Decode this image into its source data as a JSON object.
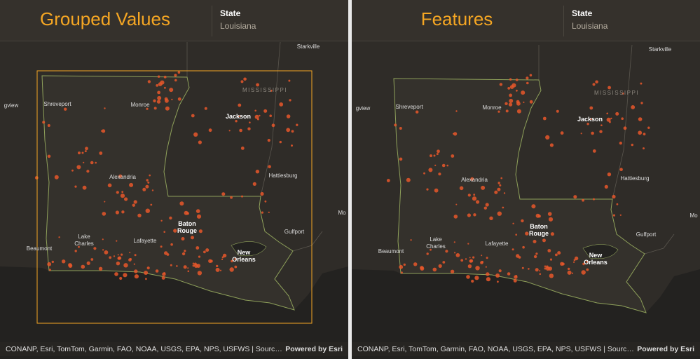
{
  "panels": [
    {
      "title": "Grouped Values",
      "field_label": "State",
      "field_value": "Louisiana",
      "map": {
        "places": [
          {
            "lines": [
              "Starkville"
            ]
          },
          {
            "lines": [
              "gview"
            ]
          },
          {
            "lines": [
              "Shreveport"
            ]
          },
          {
            "lines": [
              "Monroe"
            ]
          },
          {
            "lines": [
              "Jackson"
            ]
          },
          {
            "lines": [
              "MISSISSIPPI"
            ]
          },
          {
            "lines": [
              "Alexandria"
            ]
          },
          {
            "lines": [
              "Hattiesburg"
            ]
          },
          {
            "lines": [
              "Mo"
            ]
          },
          {
            "lines": [
              "Baton",
              "Rouge"
            ]
          },
          {
            "lines": [
              "Gulfport"
            ]
          },
          {
            "lines": [
              "Lake",
              "Charles"
            ]
          },
          {
            "lines": [
              "Lafayette"
            ]
          },
          {
            "lines": [
              "Beaumont"
            ]
          },
          {
            "lines": [
              "New",
              "Orleans"
            ]
          }
        ],
        "attribution": "CONANP, Esri, TomTom, Garmin, FAO, NOAA, USGS, EPA, NPS, USFWS | Sources: Esri; U.S. ...",
        "powered_by": "Powered by Esri"
      }
    },
    {
      "title": "Features",
      "field_label": "State",
      "field_value": "Louisiana",
      "map": {
        "places": [
          {
            "lines": [
              "Starkville"
            ]
          },
          {
            "lines": [
              "gview"
            ]
          },
          {
            "lines": [
              "Shreveport"
            ]
          },
          {
            "lines": [
              "Monroe"
            ]
          },
          {
            "lines": [
              "Jackson"
            ]
          },
          {
            "lines": [
              "MISSISSIPPI"
            ]
          },
          {
            "lines": [
              "Alexandria"
            ]
          },
          {
            "lines": [
              "Hattiesburg"
            ]
          },
          {
            "lines": [
              "Mo"
            ]
          },
          {
            "lines": [
              "Baton",
              "Rouge"
            ]
          },
          {
            "lines": [
              "Gulfport"
            ]
          },
          {
            "lines": [
              "Lake",
              "Charles"
            ]
          },
          {
            "lines": [
              "Lafayette"
            ]
          },
          {
            "lines": [
              "Beaumont"
            ]
          },
          {
            "lines": [
              "New",
              "Orleans"
            ]
          }
        ],
        "attribution": "CONANP, Esri, TomTom, Garmin, FAO, NOAA, USGS, EPA, NPS, USFWS | Sources: Esri; U.S. ...",
        "powered_by": "Powered by Esri"
      }
    }
  ]
}
